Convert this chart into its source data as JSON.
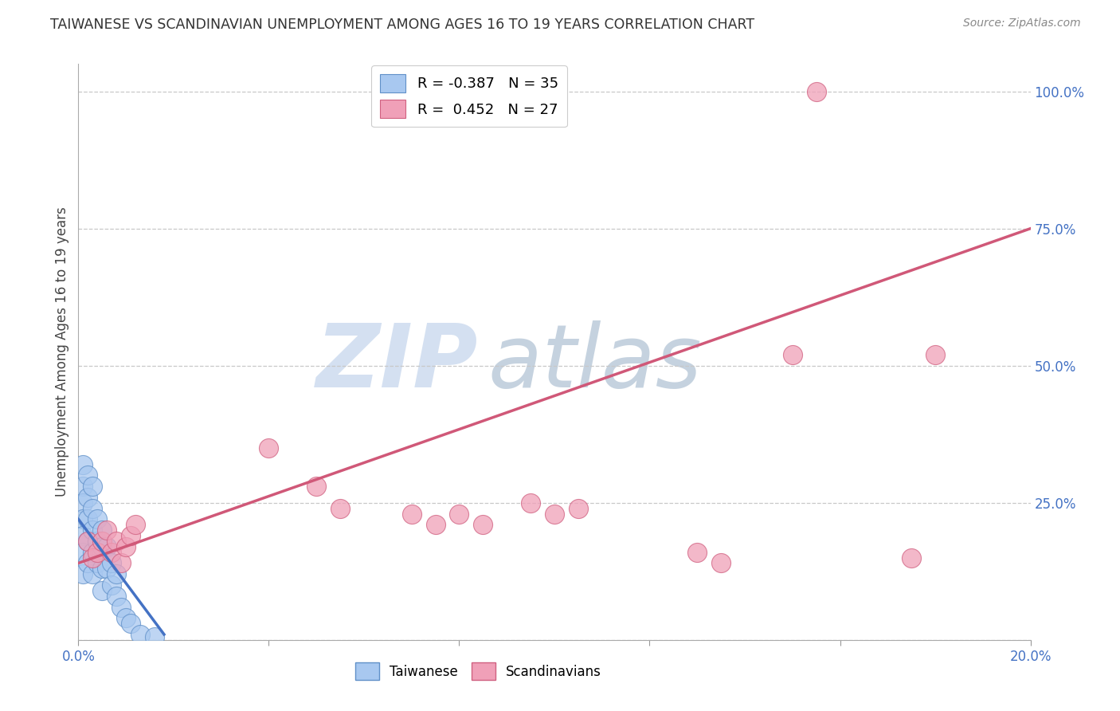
{
  "title": "TAIWANESE VS SCANDINAVIAN UNEMPLOYMENT AMONG AGES 16 TO 19 YEARS CORRELATION CHART",
  "source": "Source: ZipAtlas.com",
  "ylabel": "Unemployment Among Ages 16 to 19 years",
  "xlim": [
    0.0,
    0.2
  ],
  "ylim": [
    0.0,
    1.05
  ],
  "yticks_right": [
    0.0,
    0.25,
    0.5,
    0.75,
    1.0
  ],
  "ytick_right_labels": [
    "",
    "25.0%",
    "50.0%",
    "75.0%",
    "100.0%"
  ],
  "xticks": [
    0.0,
    0.04,
    0.08,
    0.12,
    0.16,
    0.2
  ],
  "xtick_labels": [
    "0.0%",
    "",
    "",
    "",
    "",
    "20.0%"
  ],
  "taiwanese_R": -0.387,
  "taiwanese_N": 35,
  "scandinavian_R": 0.452,
  "scandinavian_N": 27,
  "taiwanese_color": "#a8c8f0",
  "taiwanese_edge_color": "#6090c8",
  "scandinavian_color": "#f0a0b8",
  "scandinavian_edge_color": "#d06080",
  "trend_taiwanese_color": "#4472c4",
  "trend_scandinavian_color": "#d05878",
  "background_color": "#ffffff",
  "grid_color": "#c8c8c8",
  "title_color": "#333333",
  "axis_label_color": "#444444",
  "tick_color_right": "#4472c4",
  "tick_color_bottom": "#4472c4",
  "watermark_zip_color": "#b8cce8",
  "watermark_atlas_color": "#7090b0",
  "taiwanese_x": [
    0.001,
    0.001,
    0.001,
    0.001,
    0.001,
    0.001,
    0.001,
    0.002,
    0.002,
    0.002,
    0.002,
    0.002,
    0.003,
    0.003,
    0.003,
    0.003,
    0.003,
    0.004,
    0.004,
    0.004,
    0.005,
    0.005,
    0.005,
    0.005,
    0.006,
    0.006,
    0.007,
    0.007,
    0.008,
    0.008,
    0.009,
    0.01,
    0.011,
    0.013,
    0.016
  ],
  "taiwanese_y": [
    0.32,
    0.28,
    0.25,
    0.22,
    0.19,
    0.16,
    0.12,
    0.3,
    0.26,
    0.22,
    0.18,
    0.14,
    0.28,
    0.24,
    0.2,
    0.16,
    0.12,
    0.22,
    0.18,
    0.14,
    0.2,
    0.17,
    0.13,
    0.09,
    0.17,
    0.13,
    0.14,
    0.1,
    0.12,
    0.08,
    0.06,
    0.04,
    0.03,
    0.01,
    0.005
  ],
  "scandinavian_x": [
    0.002,
    0.003,
    0.004,
    0.005,
    0.006,
    0.007,
    0.008,
    0.009,
    0.01,
    0.011,
    0.012,
    0.04,
    0.05,
    0.055,
    0.07,
    0.075,
    0.08,
    0.085,
    0.095,
    0.1,
    0.105,
    0.13,
    0.135,
    0.15,
    0.155,
    0.175,
    0.18
  ],
  "scandinavian_y": [
    0.18,
    0.15,
    0.16,
    0.18,
    0.2,
    0.16,
    0.18,
    0.14,
    0.17,
    0.19,
    0.21,
    0.35,
    0.28,
    0.24,
    0.23,
    0.21,
    0.23,
    0.21,
    0.25,
    0.23,
    0.24,
    0.16,
    0.14,
    0.52,
    1.0,
    0.15,
    0.52
  ],
  "sc_trendline_x0": 0.0,
  "sc_trendline_y0": 0.14,
  "sc_trendline_x1": 0.2,
  "sc_trendline_y1": 0.75,
  "tw_trendline_x0": 0.0,
  "tw_trendline_y0": 0.22,
  "tw_trendline_x1": 0.018,
  "tw_trendline_y1": 0.01
}
